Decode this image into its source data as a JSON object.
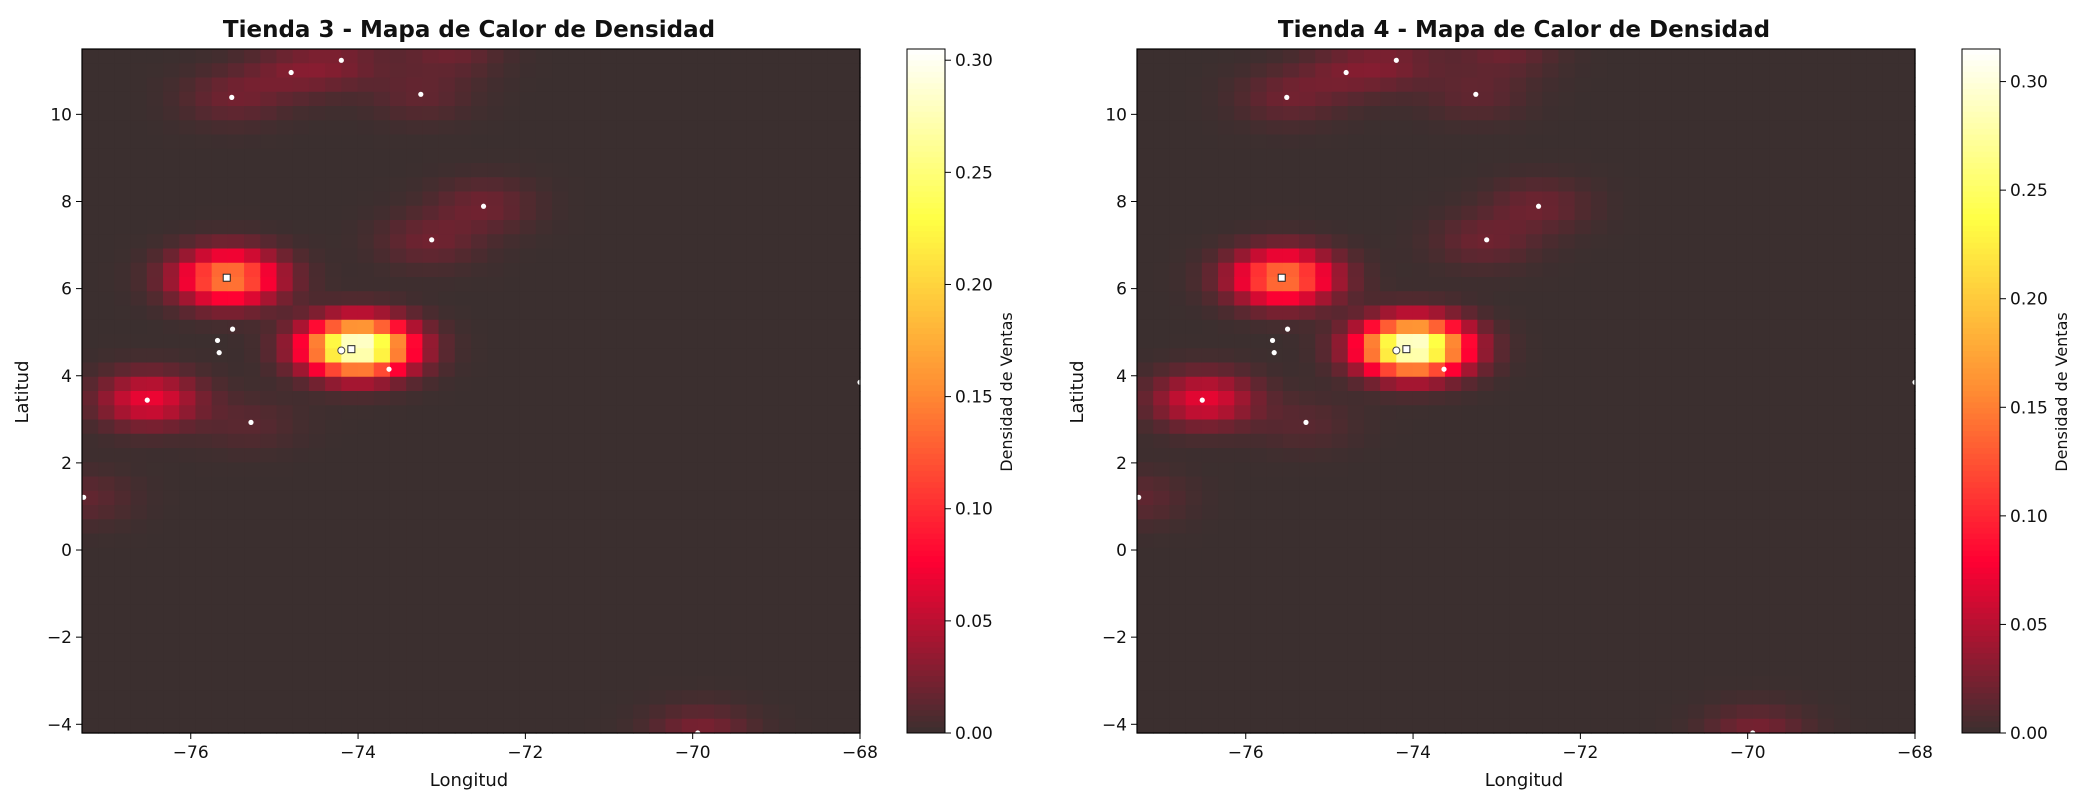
{
  "chart_data": [
    {
      "type": "heatmap",
      "title": "Tienda 3 - Mapa de Calor de Densidad",
      "xlabel": "Longitud",
      "ylabel": "Latitud",
      "colorbar_label": "Densidad de Ventas",
      "xlim": [
        -77.3,
        -68.0
      ],
      "ylim": [
        -4.2,
        11.5
      ],
      "xticks": [
        -76,
        -74,
        -72,
        -70,
        -68
      ],
      "yticks": [
        -4,
        -2,
        0,
        2,
        4,
        6,
        8,
        10
      ],
      "colorbar_range": [
        0,
        0.305
      ],
      "colorbar_ticks": [
        0.0,
        0.05,
        0.1,
        0.15,
        0.2,
        0.25,
        0.3
      ],
      "colormap": [
        "#3b2f2f",
        "#ff0033",
        "#ff8c33",
        "#ffff44",
        "#ffffff"
      ],
      "density_peaks": [
        {
          "lon": -74.0,
          "lat": 4.65,
          "value": 0.305
        },
        {
          "lon": -75.55,
          "lat": 6.25,
          "value": 0.15
        },
        {
          "lon": -76.5,
          "lat": 3.45,
          "value": 0.07
        },
        {
          "lon": -73.15,
          "lat": 7.1,
          "value": 0.02
        },
        {
          "lon": -72.5,
          "lat": 7.9,
          "value": 0.02
        },
        {
          "lon": -75.5,
          "lat": 10.4,
          "value": 0.02
        },
        {
          "lon": -74.8,
          "lat": 10.95,
          "value": 0.02
        },
        {
          "lon": -74.2,
          "lat": 11.2,
          "value": 0.02
        },
        {
          "lon": -73.25,
          "lat": 10.45,
          "value": 0.015
        },
        {
          "lon": -72.9,
          "lat": 11.5,
          "value": 0.02
        },
        {
          "lon": -69.9,
          "lat": -4.2,
          "value": 0.025
        },
        {
          "lon": -77.3,
          "lat": 1.2,
          "value": 0.015
        },
        {
          "lon": -75.3,
          "lat": 2.9,
          "value": 0.012
        }
      ],
      "points": [
        {
          "lon": -74.08,
          "lat": 4.61,
          "marker": "square"
        },
        {
          "lon": -74.2,
          "lat": 4.58,
          "marker": "circle"
        },
        {
          "lon": -73.63,
          "lat": 4.15,
          "marker": "dot"
        },
        {
          "lon": -75.57,
          "lat": 6.25,
          "marker": "square"
        },
        {
          "lon": -75.5,
          "lat": 5.07,
          "marker": "dot"
        },
        {
          "lon": -75.68,
          "lat": 4.81,
          "marker": "dot"
        },
        {
          "lon": -75.66,
          "lat": 4.53,
          "marker": "dot"
        },
        {
          "lon": -76.52,
          "lat": 3.44,
          "marker": "dot"
        },
        {
          "lon": -75.28,
          "lat": 2.93,
          "marker": "dot"
        },
        {
          "lon": -73.12,
          "lat": 7.12,
          "marker": "dot"
        },
        {
          "lon": -72.5,
          "lat": 7.89,
          "marker": "dot"
        },
        {
          "lon": -75.51,
          "lat": 10.39,
          "marker": "dot"
        },
        {
          "lon": -74.8,
          "lat": 10.96,
          "marker": "dot"
        },
        {
          "lon": -74.2,
          "lat": 11.24,
          "marker": "dot"
        },
        {
          "lon": -73.25,
          "lat": 10.46,
          "marker": "dot"
        },
        {
          "lon": -72.9,
          "lat": 11.55,
          "marker": "dot"
        },
        {
          "lon": -69.94,
          "lat": -4.2,
          "marker": "dot"
        },
        {
          "lon": -77.28,
          "lat": 1.21,
          "marker": "dot"
        },
        {
          "lon": -68.0,
          "lat": 3.85,
          "marker": "dot"
        }
      ]
    },
    {
      "type": "heatmap",
      "title": "Tienda 4 - Mapa de Calor de Densidad",
      "xlabel": "Longitud",
      "ylabel": "Latitud",
      "colorbar_label": "Densidad de Ventas",
      "xlim": [
        -77.3,
        -68.0
      ],
      "ylim": [
        -4.2,
        11.5
      ],
      "xticks": [
        -76,
        -74,
        -72,
        -70,
        -68
      ],
      "yticks": [
        -4,
        -2,
        0,
        2,
        4,
        6,
        8,
        10
      ],
      "colorbar_range": [
        0,
        0.315
      ],
      "colorbar_ticks": [
        0.0,
        0.05,
        0.1,
        0.15,
        0.2,
        0.25,
        0.3
      ],
      "colormap": [
        "#3b2f2f",
        "#ff0033",
        "#ff8c33",
        "#ffff44",
        "#ffffff"
      ],
      "density_peaks": [
        {
          "lon": -74.0,
          "lat": 4.65,
          "value": 0.315
        },
        {
          "lon": -75.55,
          "lat": 6.25,
          "value": 0.15
        },
        {
          "lon": -76.5,
          "lat": 3.45,
          "value": 0.07
        },
        {
          "lon": -73.15,
          "lat": 7.1,
          "value": 0.02
        },
        {
          "lon": -72.5,
          "lat": 7.9,
          "value": 0.02
        },
        {
          "lon": -75.5,
          "lat": 10.4,
          "value": 0.02
        },
        {
          "lon": -74.8,
          "lat": 10.95,
          "value": 0.02
        },
        {
          "lon": -74.2,
          "lat": 11.2,
          "value": 0.02
        },
        {
          "lon": -73.25,
          "lat": 10.45,
          "value": 0.015
        },
        {
          "lon": -72.9,
          "lat": 11.5,
          "value": 0.02
        },
        {
          "lon": -69.9,
          "lat": -4.2,
          "value": 0.025
        },
        {
          "lon": -77.3,
          "lat": 1.2,
          "value": 0.015
        },
        {
          "lon": -75.3,
          "lat": 2.9,
          "value": 0.012
        }
      ],
      "points": [
        {
          "lon": -74.08,
          "lat": 4.61,
          "marker": "square"
        },
        {
          "lon": -74.2,
          "lat": 4.58,
          "marker": "circle"
        },
        {
          "lon": -73.63,
          "lat": 4.15,
          "marker": "dot"
        },
        {
          "lon": -75.57,
          "lat": 6.25,
          "marker": "square"
        },
        {
          "lon": -75.5,
          "lat": 5.07,
          "marker": "dot"
        },
        {
          "lon": -75.68,
          "lat": 4.81,
          "marker": "dot"
        },
        {
          "lon": -75.66,
          "lat": 4.53,
          "marker": "dot"
        },
        {
          "lon": -76.52,
          "lat": 3.44,
          "marker": "dot"
        },
        {
          "lon": -75.28,
          "lat": 2.93,
          "marker": "dot"
        },
        {
          "lon": -73.12,
          "lat": 7.12,
          "marker": "dot"
        },
        {
          "lon": -72.5,
          "lat": 7.89,
          "marker": "dot"
        },
        {
          "lon": -75.51,
          "lat": 10.39,
          "marker": "dot"
        },
        {
          "lon": -74.8,
          "lat": 10.96,
          "marker": "dot"
        },
        {
          "lon": -74.2,
          "lat": 11.24,
          "marker": "dot"
        },
        {
          "lon": -73.25,
          "lat": 10.46,
          "marker": "dot"
        },
        {
          "lon": -72.9,
          "lat": 11.55,
          "marker": "dot"
        },
        {
          "lon": -69.94,
          "lat": -4.2,
          "marker": "dot"
        },
        {
          "lon": -77.28,
          "lat": 1.21,
          "marker": "dot"
        },
        {
          "lon": -68.0,
          "lat": 3.85,
          "marker": "dot"
        }
      ]
    }
  ]
}
